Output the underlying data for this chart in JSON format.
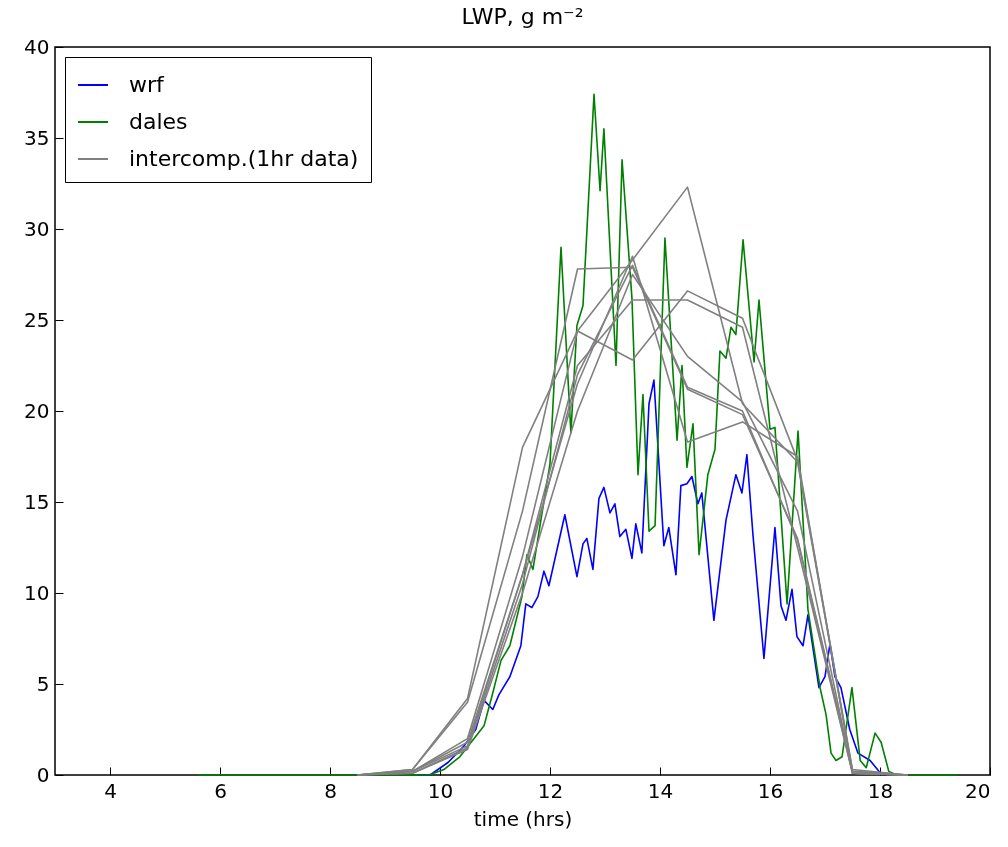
{
  "chart_data": {
    "type": "line",
    "title": "LWP, g m⁻²",
    "xlabel": "time (hrs)",
    "xlim": [
      3,
      20
    ],
    "ylim": [
      0,
      40
    ],
    "xticks": [
      4,
      6,
      8,
      10,
      12,
      14,
      16,
      18,
      20
    ],
    "yticks": [
      0,
      5,
      10,
      15,
      20,
      25,
      30,
      35,
      40
    ],
    "grid": false,
    "legend": "top left",
    "series": [
      {
        "name": "wrf",
        "color": "#0000ff",
        "x": [
          9.6,
          9.82,
          10.15,
          10.44,
          10.65,
          10.8,
          10.96,
          11.07,
          11.27,
          11.47,
          11.56,
          11.67,
          11.78,
          11.89,
          11.98,
          12.27,
          12.49,
          12.6,
          12.67,
          12.78,
          12.89,
          12.98,
          13.09,
          13.18,
          13.27,
          13.38,
          13.49,
          13.56,
          13.67,
          13.8,
          13.89,
          14.07,
          14.16,
          14.29,
          14.38,
          14.49,
          14.58,
          14.69,
          14.76,
          14.98,
          15.2,
          15.38,
          15.49,
          15.58,
          15.69,
          15.89,
          16.09,
          16.2,
          16.29,
          16.4,
          16.49,
          16.6,
          16.69,
          16.89,
          17.0,
          17.09,
          17.18,
          17.29,
          17.45,
          17.6,
          17.82,
          17.98,
          18.1
        ],
        "values": [
          0,
          0,
          0.7,
          1.6,
          2.5,
          4.1,
          3.6,
          4.4,
          5.4,
          7.1,
          9.4,
          9.2,
          9.8,
          11.2,
          10.4,
          14.3,
          10.9,
          12.7,
          13.0,
          11.3,
          15.2,
          15.8,
          14.4,
          14.9,
          13.1,
          13.5,
          11.9,
          13.8,
          12.2,
          20.4,
          21.7,
          12.6,
          13.6,
          11.0,
          15.9,
          16.0,
          16.4,
          14.9,
          15.5,
          8.5,
          14.0,
          16.5,
          15.5,
          17.6,
          13.2,
          6.4,
          13.6,
          9.3,
          8.5,
          10.2,
          7.6,
          7.1,
          8.8,
          4.8,
          5.4,
          7.2,
          5.4,
          4.8,
          2.5,
          1.2,
          0.8,
          0.2,
          0
        ]
      },
      {
        "name": "dales",
        "color": "#008000",
        "x": [
          5.6,
          9.8,
          10.07,
          10.36,
          10.62,
          10.8,
          10.95,
          11.11,
          11.27,
          11.49,
          11.58,
          11.69,
          12.0,
          12.2,
          12.38,
          12.49,
          12.6,
          12.8,
          12.91,
          12.98,
          13.2,
          13.31,
          13.49,
          13.6,
          13.69,
          13.8,
          13.91,
          14.09,
          14.31,
          14.4,
          14.49,
          14.6,
          14.71,
          14.87,
          15.0,
          15.09,
          15.2,
          15.29,
          15.38,
          15.51,
          15.71,
          15.8,
          16.0,
          16.09,
          16.31,
          16.51,
          16.69,
          16.91,
          17.02,
          17.11,
          17.2,
          17.31,
          17.49,
          17.64,
          17.75,
          17.91,
          18.02,
          18.16,
          18.3,
          19.4
        ],
        "values": [
          0,
          0,
          0.3,
          1.0,
          2.0,
          2.7,
          4.4,
          6.3,
          7.1,
          9.8,
          12.1,
          11.3,
          17.1,
          29.0,
          18.8,
          24.7,
          25.8,
          37.4,
          32.1,
          35.5,
          22.5,
          33.8,
          26.2,
          16.5,
          20.9,
          13.4,
          13.7,
          29.5,
          18.4,
          22.5,
          16.9,
          19.3,
          12.1,
          16.5,
          17.9,
          23.3,
          22.9,
          24.6,
          24.2,
          29.4,
          22.7,
          26.1,
          19.0,
          19.1,
          9.4,
          18.9,
          9.1,
          4.8,
          3.3,
          1.2,
          0.8,
          1.0,
          4.8,
          0.8,
          0.4,
          2.3,
          1.8,
          0.2,
          0,
          0
        ]
      },
      {
        "name": "intercomp.(1hr data)",
        "color": "#808080",
        "x": [
          8.5,
          9.5,
          10.5,
          11.5,
          12.5,
          13.5,
          14.5,
          15.5,
          16.5,
          17.5,
          18.5
        ],
        "values": [
          0,
          0.3,
          4.2,
          18.0,
          24.4,
          22.8,
          26.6,
          25.1,
          17.3,
          0.3,
          0
        ]
      },
      {
        "color": "#808080",
        "x": [
          8.5,
          9.5,
          10.5,
          11.5,
          12.5,
          13.5,
          14.5,
          15.5,
          16.5,
          17.5,
          18.5
        ],
        "values": [
          0,
          0.3,
          4.0,
          14.5,
          27.8,
          27.9,
          21.2,
          19.8,
          13.0,
          0.2,
          0
        ]
      },
      {
        "color": "#808080",
        "x": [
          8.5,
          9.5,
          10.5,
          11.5,
          12.5,
          13.5,
          14.5,
          15.5,
          16.5,
          17.5,
          18.5
        ],
        "values": [
          0,
          0.2,
          2.0,
          12.0,
          24.4,
          28.3,
          32.3,
          20.4,
          17.2,
          0.2,
          0
        ]
      },
      {
        "color": "#808080",
        "x": [
          8.5,
          9.5,
          10.5,
          11.5,
          12.5,
          13.5,
          14.5,
          15.5,
          16.5,
          17.5,
          18.5
        ],
        "values": [
          0,
          0.2,
          1.8,
          11.0,
          22.5,
          26.1,
          26.1,
          24.6,
          12.5,
          0.1,
          0
        ]
      },
      {
        "color": "#808080",
        "x": [
          8.5,
          9.5,
          10.5,
          11.5,
          12.5,
          13.5,
          14.5,
          15.5,
          16.5,
          17.5,
          18.5
        ],
        "values": [
          0,
          0.2,
          1.6,
          11.0,
          21.5,
          28.5,
          18.3,
          19.4,
          17.5,
          0.1,
          0
        ]
      },
      {
        "color": "#808080",
        "x": [
          8.5,
          9.5,
          10.5,
          11.5,
          12.5,
          13.5,
          14.5,
          15.5,
          16.5,
          17.5,
          18.5
        ],
        "values": [
          0,
          0.1,
          1.5,
          10.5,
          22.0,
          28.0,
          21.3,
          20.0,
          12.9,
          0.1,
          0
        ]
      },
      {
        "color": "#808080",
        "x": [
          8.5,
          9.5,
          10.5,
          11.5,
          12.5,
          13.5,
          14.5,
          15.5,
          16.5,
          17.5,
          18.5
        ],
        "values": [
          0,
          0.1,
          1.4,
          10.0,
          20.0,
          27.5,
          23.0,
          20.5,
          14.5,
          0.1,
          0
        ]
      }
    ]
  }
}
